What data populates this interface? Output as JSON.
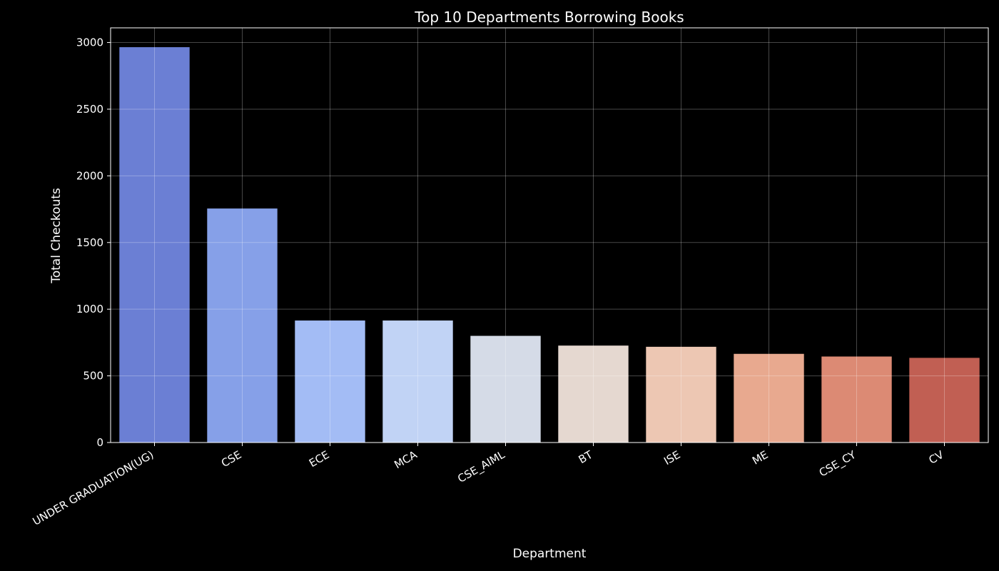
{
  "chart_data": {
    "type": "bar",
    "title": "Top 10 Departments Borrowing Books",
    "xlabel": "Department",
    "ylabel": "Total Checkouts",
    "categories": [
      "UNDER GRADUATION(UG)",
      "CSE",
      "ECE",
      "MCA",
      "CSE_AIML",
      "BT",
      "ISE",
      "ME",
      "CSE_CY",
      "CV"
    ],
    "values": [
      2965,
      1755,
      915,
      915,
      800,
      727,
      718,
      665,
      645,
      635
    ],
    "colors": [
      "#6b7fd4",
      "#86a0e8",
      "#a3bcf5",
      "#c1d3f5",
      "#d5dbe7",
      "#e5d8d0",
      "#edc7b3",
      "#e8a98f",
      "#dc8a74",
      "#c15f53"
    ],
    "ylim": [
      0,
      3110
    ],
    "yticks": [
      0,
      500,
      1000,
      1500,
      2000,
      2500,
      3000
    ],
    "grid": true,
    "legend": "none",
    "background": "#000000",
    "text_color": "#ffffff"
  }
}
